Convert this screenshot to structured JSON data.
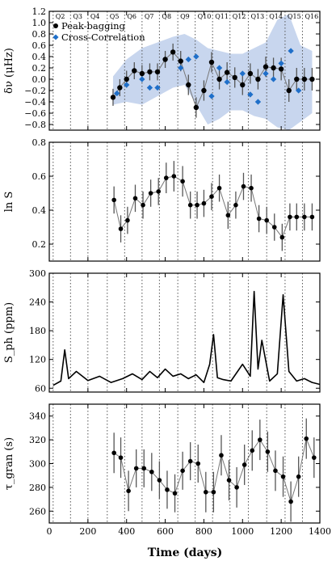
{
  "figure": {
    "xlabel": "Time (days)",
    "x_ticks": [
      0,
      200,
      400,
      600,
      800,
      1000,
      1200,
      1400
    ],
    "quarter_labels": [
      "Q2",
      "Q3",
      "Q4",
      "Q5",
      "Q6",
      "Q7",
      "Q8",
      "Q9",
      "Q10",
      "Q11",
      "Q12",
      "Q13",
      "Q14",
      "Q15",
      "Q16"
    ],
    "quarter_boundaries": [
      20,
      110,
      200,
      300,
      390,
      480,
      570,
      665,
      755,
      845,
      935,
      1030,
      1125,
      1220,
      1310
    ],
    "colors": {
      "primary": "#000000",
      "errorbar": "#555555",
      "connector": "#777777",
      "cross_correlation": "#1f6fc9",
      "band": "#c8d6ee",
      "gridline": "#555555"
    }
  },
  "chart_data": [
    {
      "id": "delta_nu",
      "type": "line",
      "ylabel": "δν (μHz)",
      "ylim": [
        -0.9,
        1.2
      ],
      "yticks": [
        -0.8,
        -0.6,
        -0.4,
        -0.2,
        0.0,
        0.2,
        0.4,
        0.6,
        0.8,
        1.0,
        1.2
      ],
      "ytick_labels": [
        "−0.8",
        "−0.6",
        "−0.4",
        "−0.2",
        "0.0",
        "0.2",
        "0.4",
        "0.6",
        "0.8",
        "1.0",
        "1.2"
      ],
      "legend": {
        "placement": "top-left",
        "entries": [
          "Peak-bagging",
          "Cross-Correlation"
        ]
      },
      "x": [
        330,
        365,
        400,
        440,
        480,
        520,
        560,
        600,
        640,
        680,
        720,
        760,
        800,
        840,
        880,
        920,
        960,
        1000,
        1040,
        1080,
        1120,
        1160,
        1200,
        1240,
        1280,
        1320,
        1360
      ],
      "series": [
        {
          "name": "Peak-bagging",
          "values": [
            -0.32,
            -0.15,
            0.0,
            0.15,
            0.1,
            0.13,
            0.13,
            0.35,
            0.48,
            0.32,
            -0.1,
            -0.5,
            -0.2,
            0.3,
            0.0,
            0.12,
            0.03,
            -0.1,
            0.1,
            0.0,
            0.22,
            0.2,
            0.18,
            -0.2,
            0.0,
            0.0,
            0.0
          ],
          "errors": [
            0.15,
            0.15,
            0.15,
            0.15,
            0.15,
            0.15,
            0.15,
            0.15,
            0.15,
            0.18,
            0.18,
            0.18,
            0.18,
            0.18,
            0.18,
            0.18,
            0.18,
            0.18,
            0.18,
            0.18,
            0.18,
            0.18,
            0.2,
            0.2,
            0.2,
            0.2,
            0.2
          ]
        },
        {
          "name": "Cross-Correlation",
          "x": [
            350,
            400,
            480,
            520,
            560,
            680,
            720,
            760,
            840,
            880,
            920,
            1000,
            1040,
            1080,
            1120,
            1160,
            1200,
            1250,
            1290
          ],
          "values": [
            -0.25,
            -0.1,
            0.0,
            -0.15,
            -0.15,
            0.2,
            0.35,
            0.4,
            -0.3,
            0.2,
            -0.05,
            0.1,
            -0.27,
            -0.4,
            0.1,
            0.0,
            0.28,
            0.5,
            -0.2
          ]
        }
      ],
      "band": {
        "x": [
          330,
          400,
          480,
          560,
          640,
          700,
          760,
          820,
          880,
          940,
          1000,
          1060,
          1120,
          1180,
          1240,
          1300,
          1360
        ],
        "upper": [
          0.05,
          0.35,
          0.55,
          0.65,
          0.75,
          0.8,
          0.7,
          0.55,
          0.5,
          0.45,
          0.45,
          0.55,
          0.65,
          1.05,
          1.15,
          0.6,
          0.5
        ],
        "lower": [
          -0.45,
          -0.4,
          -0.45,
          -0.3,
          -0.15,
          -0.1,
          -0.45,
          -0.8,
          -0.7,
          -0.55,
          -0.55,
          -0.65,
          -0.7,
          -0.85,
          -0.9,
          -0.75,
          -0.6
        ]
      }
    },
    {
      "id": "ln_s",
      "type": "line",
      "ylabel": "ln S",
      "ylim": [
        0.1,
        0.8
      ],
      "yticks": [
        0.2,
        0.4,
        0.6,
        0.8
      ],
      "ytick_labels": [
        "0.2",
        "0.4",
        "0.6",
        "0.8"
      ],
      "x": [
        335,
        370,
        405,
        445,
        485,
        525,
        565,
        605,
        645,
        690,
        730,
        765,
        800,
        840,
        880,
        925,
        965,
        1005,
        1045,
        1085,
        1125,
        1165,
        1205,
        1245,
        1280,
        1320,
        1360
      ],
      "series": [
        {
          "name": "",
          "values": [
            0.46,
            0.29,
            0.34,
            0.47,
            0.43,
            0.5,
            0.51,
            0.59,
            0.6,
            0.57,
            0.43,
            0.43,
            0.44,
            0.48,
            0.53,
            0.37,
            0.43,
            0.54,
            0.53,
            0.35,
            0.34,
            0.3,
            0.24,
            0.36,
            0.36,
            0.36,
            0.36
          ],
          "errors": [
            0.08,
            0.08,
            0.08,
            0.08,
            0.08,
            0.08,
            0.08,
            0.09,
            0.09,
            0.09,
            0.08,
            0.08,
            0.08,
            0.08,
            0.08,
            0.08,
            0.08,
            0.08,
            0.08,
            0.08,
            0.08,
            0.08,
            0.08,
            0.08,
            0.08,
            0.08,
            0.08
          ]
        }
      ]
    },
    {
      "id": "s_ph",
      "type": "line",
      "ylabel": "S_ph (ppm)",
      "ylim": [
        52,
        300
      ],
      "yticks": [
        60,
        120,
        180,
        240,
        300
      ],
      "ytick_labels": [
        "60",
        "120",
        "180",
        "240",
        "300"
      ],
      "x": [
        20,
        60,
        80,
        100,
        140,
        200,
        260,
        320,
        380,
        430,
        480,
        520,
        560,
        600,
        640,
        680,
        720,
        760,
        800,
        830,
        850,
        870,
        900,
        940,
        1000,
        1040,
        1060,
        1080,
        1100,
        1140,
        1180,
        1210,
        1240,
        1280,
        1320,
        1360,
        1400
      ],
      "series": [
        {
          "name": "",
          "values": [
            66,
            75,
            140,
            80,
            95,
            76,
            85,
            72,
            80,
            90,
            78,
            95,
            82,
            100,
            85,
            90,
            80,
            88,
            72,
            110,
            172,
            82,
            78,
            75,
            110,
            85,
            262,
            100,
            160,
            75,
            90,
            255,
            95,
            75,
            80,
            72,
            68
          ]
        }
      ]
    },
    {
      "id": "tau_gran",
      "type": "line",
      "ylabel": "τ_gran (s)",
      "ylim": [
        250,
        350
      ],
      "yticks": [
        260,
        280,
        300,
        320,
        340
      ],
      "ytick_labels": [
        "260",
        "280",
        "300",
        "320",
        "340"
      ],
      "x": [
        335,
        370,
        410,
        450,
        490,
        530,
        570,
        610,
        650,
        690,
        730,
        770,
        810,
        850,
        890,
        930,
        970,
        1010,
        1050,
        1090,
        1130,
        1170,
        1210,
        1250,
        1290,
        1330,
        1370
      ],
      "series": [
        {
          "name": "",
          "values": [
            309,
            305,
            277,
            296,
            296,
            293,
            286,
            278,
            275,
            294,
            302,
            300,
            276,
            276,
            307,
            286,
            280,
            299,
            311,
            320,
            310,
            294,
            289,
            268,
            289,
            321,
            305
          ],
          "errors": [
            17,
            17,
            17,
            16,
            16,
            16,
            16,
            16,
            16,
            16,
            16,
            16,
            17,
            17,
            17,
            17,
            17,
            17,
            17,
            17,
            17,
            17,
            17,
            17,
            17,
            17,
            17
          ]
        }
      ]
    }
  ]
}
